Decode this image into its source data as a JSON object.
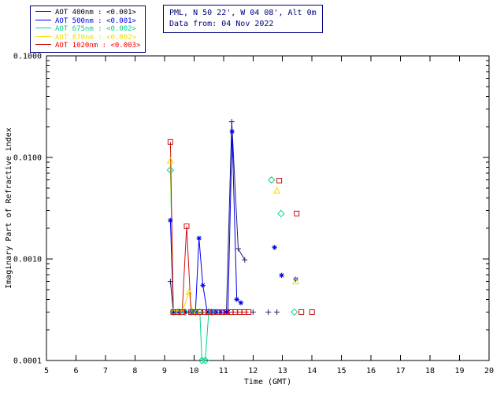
{
  "header": {
    "station": "PML, N 50 22', W 04 08', Alt 0m",
    "data_from": "Data from: 04 Nov 2022",
    "text_color": "#000080"
  },
  "chart_data": {
    "type": "line",
    "title": "",
    "xlabel": "Time (GMT)",
    "ylabel": "Imaginary Part of Refractive index",
    "xlim": [
      5,
      20
    ],
    "xticks": [
      5,
      6,
      7,
      8,
      9,
      10,
      11,
      12,
      13,
      14,
      15,
      16,
      17,
      18,
      19,
      20
    ],
    "ylog": true,
    "ylim": [
      0.0001,
      0.1
    ],
    "yticks": [
      0.0001,
      0.001,
      0.01,
      0.1
    ],
    "ytick_labels": [
      "0.0001",
      "0.0010",
      "0.0100",
      "0.1000"
    ],
    "grid": false,
    "legend_position": "top-left",
    "axis_color": "#000000",
    "series": [
      {
        "name": "AOT 400nm",
        "legend_label": "AOT  400nm : <0.001>",
        "color": "#202070",
        "text_color": "#000000",
        "marker": "plus",
        "segments": [
          [
            [
              9.2,
              0.0006
            ],
            [
              9.3,
              0.0003
            ],
            [
              9.5,
              0.0003
            ],
            [
              9.7,
              0.0003
            ],
            [
              9.9,
              0.0003
            ],
            [
              10.1,
              0.0003
            ],
            [
              10.3,
              0.0003
            ],
            [
              10.5,
              0.0003
            ],
            [
              10.7,
              0.0003
            ],
            [
              10.9,
              0.0003
            ],
            [
              11.1,
              0.0003
            ],
            [
              11.28,
              0.0225
            ],
            [
              11.5,
              0.00126
            ],
            [
              11.72,
              0.00098
            ]
          ],
          [
            [
              12.0,
              0.0003
            ]
          ],
          [
            [
              12.52,
              0.0003
            ]
          ],
          [
            [
              12.81,
              0.0003
            ]
          ]
        ]
      },
      {
        "name": "AOT 500nm",
        "legend_label": "AOT  500nm : <0.001>",
        "color": "#0000ee",
        "text_color": "#0000ee",
        "marker": "asterisk",
        "segments": [
          [
            [
              9.2,
              0.0024
            ],
            [
              9.3,
              0.0003
            ],
            [
              9.5,
              0.0003
            ],
            [
              9.7,
              0.0003
            ],
            [
              9.9,
              0.0003
            ],
            [
              10.05,
              0.0003
            ],
            [
              10.17,
              0.0016
            ],
            [
              10.3,
              0.00055
            ],
            [
              10.45,
              0.0003
            ],
            [
              10.6,
              0.0003
            ],
            [
              10.75,
              0.0003
            ],
            [
              10.9,
              0.0003
            ],
            [
              11.05,
              0.0003
            ],
            [
              11.15,
              0.0003
            ],
            [
              11.29,
              0.018
            ],
            [
              11.45,
              0.0004
            ],
            [
              11.59,
              0.00037
            ]
          ],
          [
            [
              12.73,
              0.0013
            ]
          ],
          [
            [
              12.97,
              0.00069
            ]
          ],
          [
            [
              13.45,
              0.00063
            ]
          ]
        ]
      },
      {
        "name": "AOT 675nm",
        "legend_label": "AOT  675nm : <0.002>",
        "color": "#00d488",
        "text_color": "#00d488",
        "marker": "diamond",
        "segments": [
          [
            [
              9.2,
              0.0075
            ],
            [
              9.3,
              0.0003
            ],
            [
              9.5,
              0.0003
            ],
            [
              9.7,
              0.0003
            ],
            [
              9.9,
              0.0003
            ],
            [
              10.05,
              0.0003
            ],
            [
              10.2,
              0.0003
            ],
            [
              10.27,
              0.0001
            ],
            [
              10.38,
              0.0001
            ],
            [
              10.5,
              0.0003
            ],
            [
              10.6,
              0.0003
            ]
          ],
          [
            [
              12.63,
              0.006
            ]
          ],
          [
            [
              12.95,
              0.0028
            ]
          ],
          [
            [
              13.4,
              0.0003
            ]
          ]
        ]
      },
      {
        "name": "AOT 870nm",
        "legend_label": "AOT  870nm : <0.002>",
        "color": "#f0dc00",
        "text_color": "#f0dc00",
        "marker": "triangle",
        "segments": [
          [
            [
              9.2,
              0.0093
            ],
            [
              9.3,
              0.0003
            ],
            [
              9.45,
              0.0003
            ],
            [
              9.6,
              0.0003
            ],
            [
              9.83,
              0.00047
            ],
            [
              9.95,
              0.0003
            ],
            [
              10.1,
              0.0003
            ]
          ],
          [
            [
              12.81,
              0.0047
            ]
          ],
          [
            [
              13.45,
              0.0006
            ]
          ]
        ]
      },
      {
        "name": "AOT 1020nm",
        "legend_label": "AOT 1020nm : <0.003>",
        "color": "#cc1111",
        "text_color": "#ee0000",
        "marker": "square",
        "segments": [
          [
            [
              9.2,
              0.0142
            ],
            [
              9.3,
              0.0003
            ],
            [
              9.45,
              0.0003
            ],
            [
              9.6,
              0.0003
            ],
            [
              9.75,
              0.0021
            ],
            [
              9.9,
              0.0003
            ],
            [
              10.05,
              0.0003
            ],
            [
              10.2,
              0.0003
            ],
            [
              10.35,
              0.0003
            ],
            [
              10.5,
              0.0003
            ],
            [
              10.65,
              0.0003
            ],
            [
              10.8,
              0.0003
            ],
            [
              10.95,
              0.0003
            ],
            [
              11.1,
              0.0003
            ],
            [
              11.25,
              0.0003
            ],
            [
              11.4,
              0.0003
            ],
            [
              11.55,
              0.0003
            ],
            [
              11.7,
              0.0003
            ],
            [
              11.85,
              0.0003
            ]
          ],
          [
            [
              12.89,
              0.0059
            ]
          ],
          [
            [
              13.48,
              0.0028
            ]
          ],
          [
            [
              13.64,
              0.0003
            ]
          ],
          [
            [
              14.0,
              0.0003
            ]
          ]
        ]
      }
    ]
  }
}
